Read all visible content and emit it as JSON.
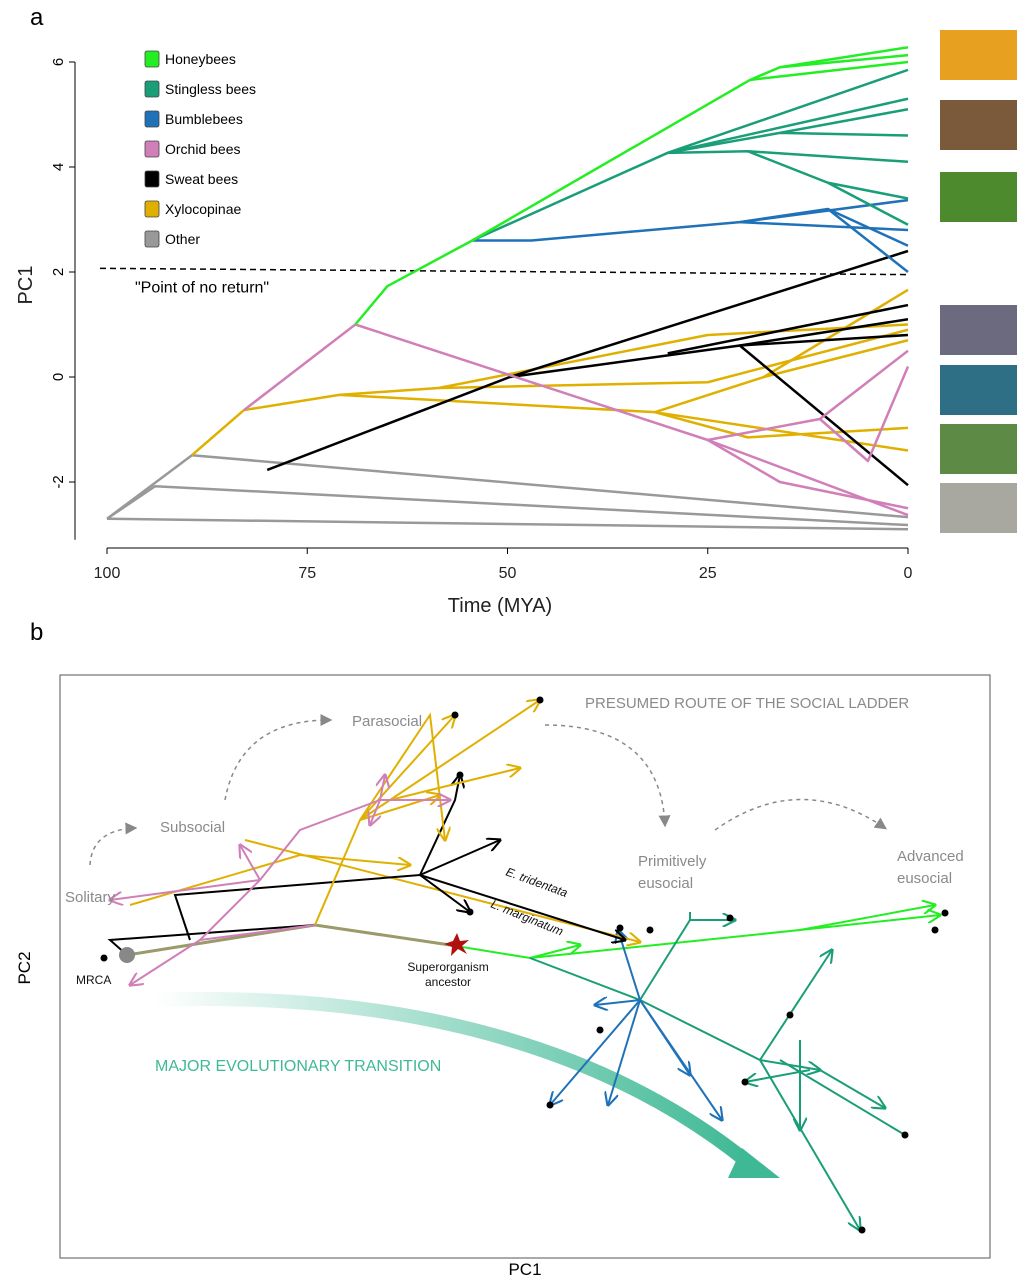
{
  "chart_data": [
    {
      "type": "traitgram",
      "panel_label": "a",
      "x_label": "Time (MYA)",
      "y_label": "PC1",
      "xlim": [
        100,
        0
      ],
      "ylim": [
        -3.1,
        6
      ],
      "xticks": [
        100,
        75,
        50,
        25,
        0
      ],
      "yticks": [
        -2,
        0,
        2,
        4,
        6
      ],
      "legend": "upper left",
      "threshold": {
        "label": "\"Point of no return\"",
        "x": [
          100,
          0
        ],
        "y": [
          2.07,
          1.95
        ]
      },
      "series": [
        {
          "name": "Honeybees",
          "color": "#22ee22",
          "segments": [
            {
              "x": [
                69,
                65,
                54.4,
                19.7,
                16,
                0
              ],
              "y": [
                1.0,
                1.73,
                2.6,
                5.66,
                5.9,
                6.28
              ]
            },
            {
              "x": [
                16,
                0
              ],
              "y": [
                5.9,
                6.13
              ]
            },
            {
              "x": [
                19.7,
                0
              ],
              "y": [
                5.66,
                6.0
              ]
            }
          ]
        },
        {
          "name": "Stingless bees",
          "color": "#1a9e78",
          "segments": [
            {
              "x": [
                54.4,
                30,
                0
              ],
              "y": [
                2.6,
                4.27,
                5.85
              ]
            },
            {
              "x": [
                30,
                0
              ],
              "y": [
                4.27,
                5.3
              ]
            },
            {
              "x": [
                30,
                16,
                0
              ],
              "y": [
                4.27,
                4.65,
                4.6
              ]
            },
            {
              "x": [
                16,
                0
              ],
              "y": [
                4.65,
                5.1
              ]
            },
            {
              "x": [
                30,
                20,
                0
              ],
              "y": [
                4.27,
                4.3,
                4.1
              ]
            },
            {
              "x": [
                20,
                10,
                0
              ],
              "y": [
                4.3,
                3.7,
                3.4
              ]
            },
            {
              "x": [
                10,
                0
              ],
              "y": [
                3.7,
                2.9
              ]
            }
          ]
        },
        {
          "name": "Bumblebees",
          "color": "#1f72b8",
          "segments": [
            {
              "x": [
                54.4,
                47,
                21,
                0
              ],
              "y": [
                2.6,
                2.6,
                2.95,
                3.37
              ]
            },
            {
              "x": [
                21,
                10,
                0
              ],
              "y": [
                2.95,
                3.2,
                2.5
              ]
            },
            {
              "x": [
                10,
                0
              ],
              "y": [
                3.2,
                2.0
              ]
            },
            {
              "x": [
                21,
                0
              ],
              "y": [
                2.95,
                2.8
              ]
            }
          ]
        },
        {
          "name": "Orchid bees",
          "color": "#d07fb8",
          "segments": [
            {
              "x": [
                82.9,
                69
              ],
              "y": [
                -0.63,
                1.0
              ]
            },
            {
              "x": [
                69,
                25,
                0
              ],
              "y": [
                1.0,
                -1.2,
                -2.63
              ]
            },
            {
              "x": [
                25,
                11,
                0
              ],
              "y": [
                -1.2,
                -0.8,
                0.5
              ]
            },
            {
              "x": [
                11,
                5,
                0
              ],
              "y": [
                -0.8,
                -1.6,
                0.2
              ]
            },
            {
              "x": [
                25,
                16,
                0
              ],
              "y": [
                -1.2,
                -2.0,
                -2.5
              ]
            }
          ]
        },
        {
          "name": "Sweat bees",
          "color": "#000000",
          "segments": [
            {
              "x": [
                80,
                49.7,
                21,
                0
              ],
              "y": [
                -1.77,
                0,
                0.6,
                1.1
              ]
            },
            {
              "x": [
                21,
                0
              ],
              "y": [
                0.6,
                -2.06
              ]
            },
            {
              "x": [
                49.7,
                0
              ],
              "y": [
                0,
                2.4
              ]
            },
            {
              "x": [
                30,
                0
              ],
              "y": [
                0.45,
                1.37
              ]
            },
            {
              "x": [
                21,
                0
              ],
              "y": [
                0.6,
                0.8
              ]
            }
          ]
        },
        {
          "name": "Xylocopinae",
          "color": "#e0b000",
          "segments": [
            {
              "x": [
                89.4,
                82.9
              ],
              "y": [
                -1.49,
                -0.63
              ]
            },
            {
              "x": [
                82.9,
                71,
                58.6,
                25,
                0
              ],
              "y": [
                -0.63,
                -0.34,
                -0.21,
                0.8,
                1.0
              ]
            },
            {
              "x": [
                71,
                31.6,
                0
              ],
              "y": [
                -0.34,
                -0.67,
                -1.4
              ]
            },
            {
              "x": [
                31.6,
                18,
                0
              ],
              "y": [
                -0.67,
                0.0,
                1.66
              ]
            },
            {
              "x": [
                18,
                0
              ],
              "y": [
                0.0,
                0.7
              ]
            },
            {
              "x": [
                31.6,
                20,
                0
              ],
              "y": [
                -0.67,
                -1.15,
                -0.97
              ]
            },
            {
              "x": [
                58.6,
                25,
                0
              ],
              "y": [
                -0.21,
                -0.1,
                0.9
              ]
            }
          ]
        },
        {
          "name": "Other",
          "color": "#999999",
          "segments": [
            {
              "x": [
                100,
                94,
                0
              ],
              "y": [
                -2.7,
                -2.08,
                -2.82
              ]
            },
            {
              "x": [
                100,
                89.4,
                0
              ],
              "y": [
                -2.7,
                -1.49,
                -2.67
              ]
            },
            {
              "x": [
                100,
                0
              ],
              "y": [
                -2.7,
                -2.9
              ]
            }
          ]
        }
      ]
    },
    {
      "type": "phylomorphospace",
      "panel_label": "b",
      "x_label": "PC1",
      "y_label": "PC2",
      "annotations": {
        "route": "PRESUMED ROUTE OF THE SOCIAL LADDER",
        "parasocial": "Parasocial",
        "subsocial": "Subsocial",
        "solitary": "Solitary",
        "primitively": [
          "Primitively",
          "eusocial"
        ],
        "advanced": [
          "Advanced",
          "eusocial"
        ],
        "tridentata": "E. tridentata",
        "marginatum": "L. marginatum",
        "superorganism": [
          "Superorganism",
          "ancestor"
        ],
        "mrca": "MRCA",
        "transition": "MAJOR EVOLUTIONARY TRANSITION"
      }
    }
  ]
}
